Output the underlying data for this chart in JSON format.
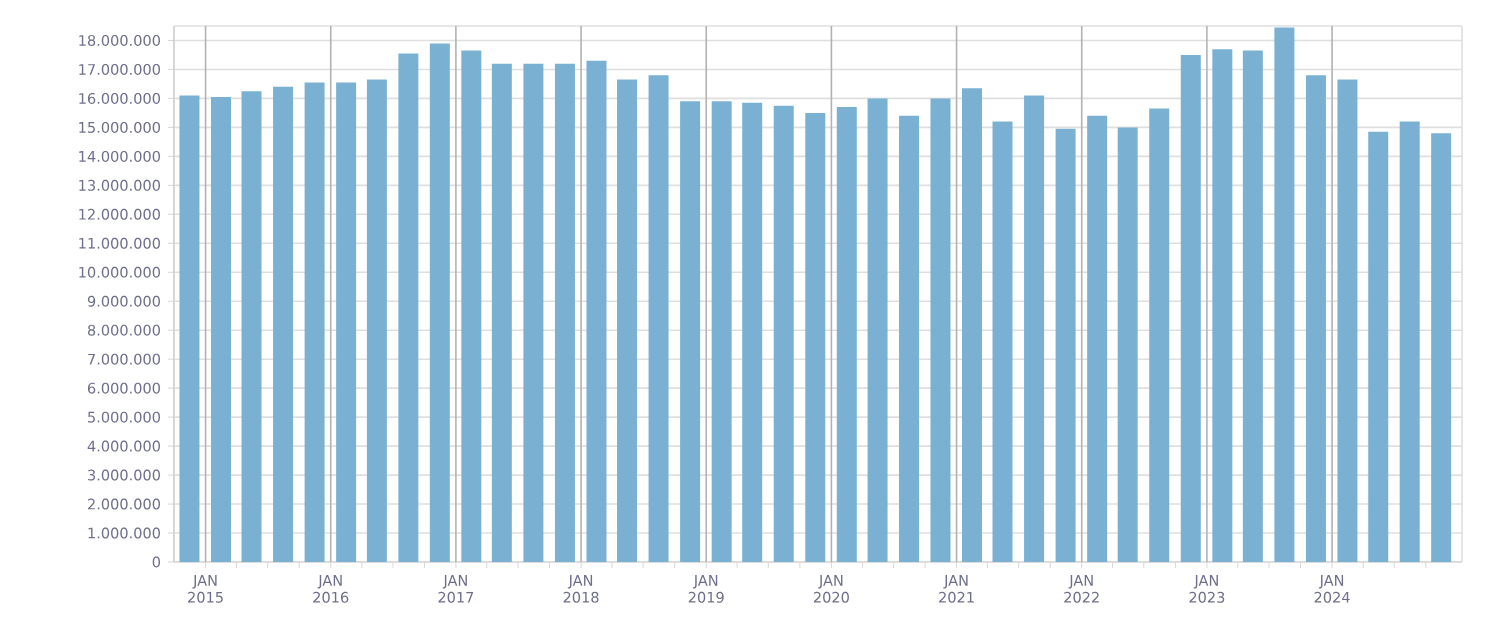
{
  "chart_data": {
    "type": "bar",
    "color": "#7ab1d3",
    "x": [
      "2014-11-15",
      "2015-02-15",
      "2015-05-15",
      "2015-08-15",
      "2015-11-15",
      "2016-02-15",
      "2016-05-15",
      "2016-08-15",
      "2016-11-15",
      "2017-02-15",
      "2017-05-15",
      "2017-08-15",
      "2017-11-15",
      "2018-02-15",
      "2018-05-15",
      "2018-08-15",
      "2018-11-15",
      "2019-02-15",
      "2019-05-15",
      "2019-08-15",
      "2019-11-15",
      "2020-02-15",
      "2020-05-15",
      "2020-08-15",
      "2020-11-15",
      "2021-02-15",
      "2021-05-15",
      "2021-08-15",
      "2021-11-15",
      "2022-02-15",
      "2022-05-15",
      "2022-08-15",
      "2022-11-15",
      "2023-02-15",
      "2023-05-15",
      "2023-08-15",
      "2023-11-15",
      "2024-02-15",
      "2024-05-15",
      "2024-08-15",
      "2024-11-15"
    ],
    "values": [
      16100000,
      16050000,
      16250000,
      16400000,
      16550000,
      16550000,
      16650000,
      17550000,
      17900000,
      17650000,
      17200000,
      17200000,
      17200000,
      17300000,
      16650000,
      16800000,
      15900000,
      15900000,
      15850000,
      15750000,
      15500000,
      15700000,
      16000000,
      15400000,
      16000000,
      16350000,
      15200000,
      16100000,
      14950000,
      15400000,
      15000000,
      15650000,
      17500000,
      17700000,
      17650000,
      18450000,
      16800000,
      16650000,
      14850000,
      15200000,
      14800000
    ],
    "xlim": [
      "2014-10-01",
      "2025-01-15"
    ],
    "xticks": [
      {
        "value": "2015-01-01",
        "label": "JAN 2015"
      },
      {
        "value": "2015-04-01",
        "label": null
      },
      {
        "value": "2015-07-01",
        "label": null
      },
      {
        "value": "2015-10-01",
        "label": null
      },
      {
        "value": "2016-01-01",
        "label": "JAN 2016"
      },
      {
        "value": "2016-04-01",
        "label": null
      },
      {
        "value": "2016-07-01",
        "label": null
      },
      {
        "value": "2016-10-01",
        "label": null
      },
      {
        "value": "2017-01-01",
        "label": "JAN 2017"
      },
      {
        "value": "2017-04-01",
        "label": null
      },
      {
        "value": "2017-07-01",
        "label": null
      },
      {
        "value": "2017-10-01",
        "label": null
      },
      {
        "value": "2018-01-01",
        "label": "JAN 2018"
      },
      {
        "value": "2018-04-01",
        "label": null
      },
      {
        "value": "2018-07-01",
        "label": null
      },
      {
        "value": "2018-10-01",
        "label": null
      },
      {
        "value": "2019-01-01",
        "label": "JAN 2019"
      },
      {
        "value": "2019-04-01",
        "label": null
      },
      {
        "value": "2019-07-01",
        "label": null
      },
      {
        "value": "2019-10-01",
        "label": null
      },
      {
        "value": "2020-01-01",
        "label": "JAN 2020"
      },
      {
        "value": "2020-04-01",
        "label": null
      },
      {
        "value": "2020-07-01",
        "label": null
      },
      {
        "value": "2020-10-01",
        "label": null
      },
      {
        "value": "2021-01-01",
        "label": "JAN 2021"
      },
      {
        "value": "2021-04-01",
        "label": null
      },
      {
        "value": "2021-07-01",
        "label": null
      },
      {
        "value": "2021-10-01",
        "label": null
      },
      {
        "value": "2022-01-01",
        "label": "JAN 2022"
      },
      {
        "value": "2022-04-01",
        "label": null
      },
      {
        "value": "2022-07-01",
        "label": null
      },
      {
        "value": "2022-10-01",
        "label": null
      },
      {
        "value": "2023-01-01",
        "label": "JAN 2023"
      },
      {
        "value": "2023-04-01",
        "label": null
      },
      {
        "value": "2023-07-01",
        "label": null
      },
      {
        "value": "2023-10-01",
        "label": null
      },
      {
        "value": "2024-01-01",
        "label": "JAN 2024"
      },
      {
        "value": "2024-04-01",
        "label": null
      },
      {
        "value": "2024-07-01",
        "label": null
      },
      {
        "value": "2024-10-01",
        "label": null
      }
    ],
    "ylim": [
      0,
      18500000
    ],
    "yticks": [
      0,
      {
        "value": 1000000,
        "label": "1.000.000"
      },
      {
        "value": 2000000,
        "label": "2.000.000"
      },
      {
        "value": 3000000,
        "label": "3.000.000"
      },
      {
        "value": 4000000,
        "label": "4.000.000"
      },
      {
        "value": 5000000,
        "label": "5.000.000"
      },
      {
        "value": 6000000,
        "label": "6.000.000"
      },
      {
        "value": 7000000,
        "label": "7.000.000"
      },
      {
        "value": 8000000,
        "label": "8.000.000"
      },
      {
        "value": 9000000,
        "label": "9.000.000"
      },
      {
        "value": 10000000,
        "label": "10.000.000"
      },
      {
        "value": 11000000,
        "label": "11.000.000"
      },
      {
        "value": 12000000,
        "label": "12.000.000"
      },
      {
        "value": 13000000,
        "label": "13.000.000"
      },
      {
        "value": 14000000,
        "label": "14.000.000"
      },
      {
        "value": 15000000,
        "label": "15.000.000"
      },
      {
        "value": 16000000,
        "label": "16.000.000"
      },
      {
        "value": 17000000,
        "label": "17.000.000"
      },
      {
        "value": 18000000,
        "label": "18.000.000"
      }
    ],
    "grid": true
  }
}
